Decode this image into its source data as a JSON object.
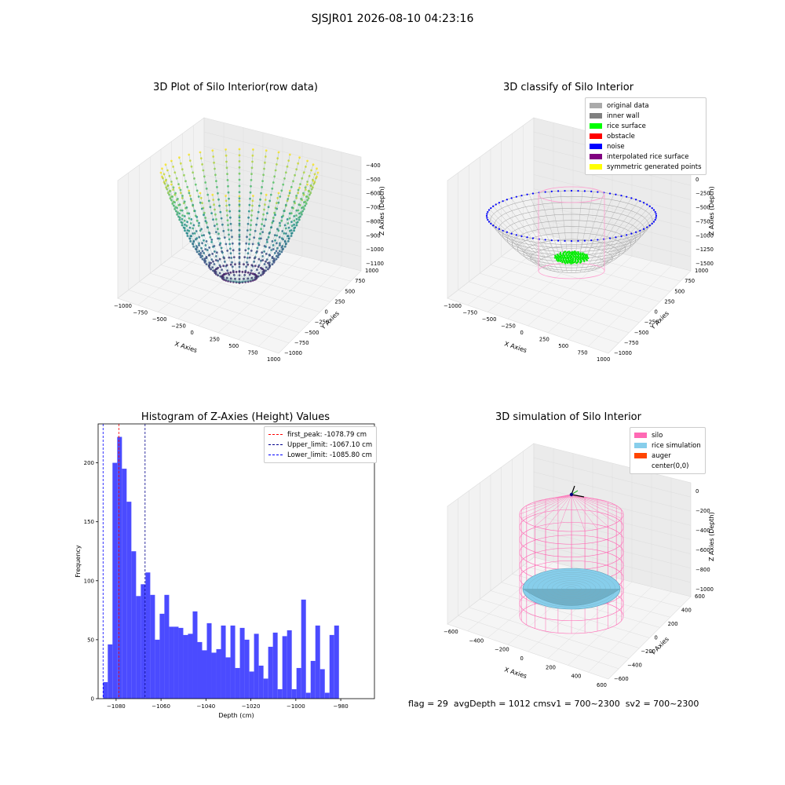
{
  "suptitle": "SJSJR01 2026-08-10 04:23:16",
  "footer": "flag = 29  avgDepth = 1012 cmsv1 = 700~2300  sv2 = 700~2300",
  "colors": {
    "histogram_bar": "#4b4bff",
    "first_peak": "#ff0000",
    "upper_limit": "#00008b",
    "lower_limit": "#0000ff",
    "silo": "#ff69b4",
    "rice_simulation": "#87ceeb",
    "auger": "#ff4500"
  },
  "chart_data": [
    {
      "type": "scatter",
      "title": "3D Plot of Silo Interior(row data)",
      "xlabel": "X Axies",
      "ylabel": "Y Axies",
      "zlabel": "Z Axies (Depth)",
      "x_ticks": [
        "−1000",
        "−750",
        "−500",
        "−250",
        "0",
        "250",
        "500",
        "750",
        "1000"
      ],
      "y_ticks": [
        "−1000",
        "−750",
        "−500",
        "−250",
        "0",
        "250",
        "500",
        "750",
        "1000"
      ],
      "z_ticks": [
        "−400",
        "−500",
        "−600",
        "−700",
        "−800",
        "−900",
        "−1000",
        "−1100"
      ],
      "colormap": "viridis",
      "note_shape": "paraboloid bowl, rim at z≈-400, bottom at z≈-1150"
    },
    {
      "type": "scatter",
      "title": "3D classify of Silo Interior",
      "xlabel": "X Axies",
      "ylabel": "Y Axies",
      "zlabel": "Z Axies (Depth)",
      "x_ticks": [
        "−1000",
        "−750",
        "−500",
        "−250",
        "0",
        "250",
        "500",
        "750",
        "1000"
      ],
      "y_ticks": [
        "−1000",
        "−750",
        "−500",
        "−250",
        "0",
        "250",
        "500",
        "750",
        "1000"
      ],
      "z_ticks": [
        "250",
        "0",
        "−250",
        "−500",
        "−750",
        "−1000",
        "−1250",
        "−1500"
      ],
      "legend": [
        {
          "label": "original data",
          "color": "#aaaaaa"
        },
        {
          "label": "inner wall",
          "color": "#808080"
        },
        {
          "label": "rice surface",
          "color": "#00ff00"
        },
        {
          "label": "obstacle",
          "color": "#ff0000"
        },
        {
          "label": "noise",
          "color": "#0000ff"
        },
        {
          "label": "interpolated rice surface",
          "color": "#800080"
        },
        {
          "label": "symmetric generated points",
          "color": "#ffff00"
        }
      ]
    },
    {
      "type": "bar",
      "title": "Histogram of Z-Axies (Height) Values",
      "xlabel": "Depth (cm)",
      "ylabel": "Frequency",
      "xlim": [
        -1088,
        -965
      ],
      "ylim": [
        0,
        233
      ],
      "x_ticks": [
        -1080,
        -1060,
        -1040,
        -1020,
        -1000,
        -980
      ],
      "x_tick_labels": [
        "−1080",
        "−1060",
        "−1040",
        "−1020",
        "−1000",
        "−980"
      ],
      "y_ticks": [
        0,
        50,
        100,
        150,
        200
      ],
      "y_tick_labels": [
        "0",
        "50",
        "100",
        "150",
        "200"
      ],
      "bin_start": -1085.8,
      "bin_width": 2.1,
      "values": [
        14,
        46,
        200,
        222,
        195,
        167,
        125,
        87,
        97,
        107,
        88,
        50,
        72,
        88,
        61,
        61,
        60,
        54,
        55,
        74,
        48,
        41,
        64,
        39,
        42,
        62,
        35,
        62,
        26,
        60,
        50,
        23,
        55,
        28,
        17,
        44,
        56,
        8,
        53,
        58,
        8,
        26,
        84,
        5,
        32,
        62,
        25,
        5,
        54,
        62
      ],
      "vlines": [
        {
          "label": "first_peak: -1078.79 cm",
          "x": -1078.79,
          "color": "#ff0000"
        },
        {
          "label": "Upper_limit: -1067.10 cm",
          "x": -1067.1,
          "color": "#00008b"
        },
        {
          "label": "Lower_limit: -1085.80 cm",
          "x": -1085.8,
          "color": "#0000ff"
        }
      ]
    },
    {
      "type": "scatter",
      "title": "3D simulation of Silo Interior",
      "xlabel": "X Axies",
      "ylabel": "Y Axies",
      "zlabel": "Z Axies (Depth)",
      "x_ticks": [
        "−600",
        "−400",
        "−200",
        "0",
        "200",
        "400",
        "600"
      ],
      "y_ticks": [
        "−600",
        "−400",
        "−200",
        "0",
        "200",
        "400",
        "600"
      ],
      "z_ticks": [
        "0",
        "−200",
        "−400",
        "−600",
        "−800",
        "−1000"
      ],
      "legend": [
        {
          "label": "silo",
          "color": "#ff69b4"
        },
        {
          "label": "rice simulation",
          "color": "#87ceeb"
        },
        {
          "label": "auger",
          "color": "#ff4500"
        },
        {
          "label": "center(0,0)",
          "color": ""
        }
      ]
    }
  ]
}
